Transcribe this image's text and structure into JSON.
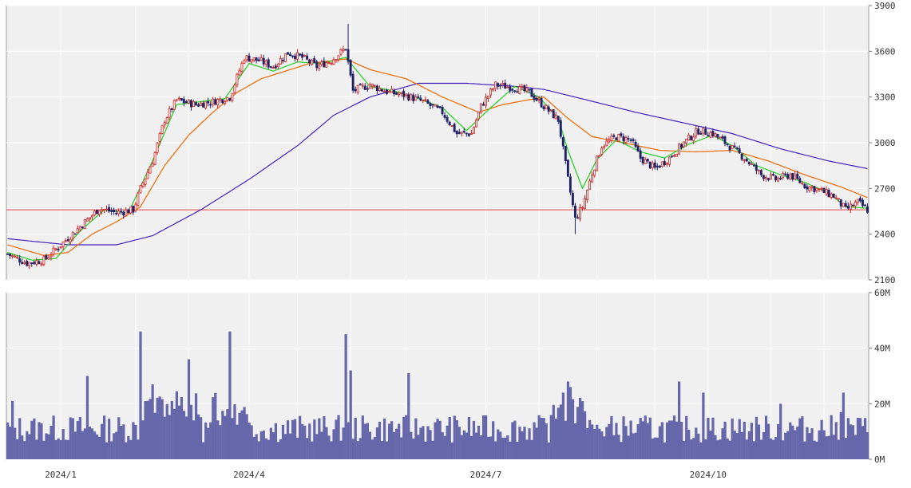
{
  "chart_data": [
    {
      "type": "candlestick",
      "title": "",
      "ylim": [
        2100,
        3900
      ],
      "y_ticks": [
        "3900",
        "3600",
        "3300",
        "3000",
        "2700",
        "2400",
        "2100"
      ],
      "x_ticks": [
        "2024/1",
        "2024/4",
        "2024/7",
        "2024/10"
      ],
      "reference_line": 2560,
      "moving_averages": [
        {
          "period": "short",
          "color": "#22cc22"
        },
        {
          "period": "medium",
          "color": "#ee6600"
        },
        {
          "period": "long",
          "color": "#4422bb"
        }
      ],
      "colors": {
        "up": "#cc2222",
        "down": "#222266",
        "panel_bg": "#f0f0f0",
        "grid": "#ffffff",
        "ref_line": "#ee4444"
      },
      "ohlc_summary": {
        "anchors": [
          [
            0,
            2270
          ],
          [
            8,
            2210
          ],
          [
            15,
            2230
          ],
          [
            22,
            2330
          ],
          [
            30,
            2450
          ],
          [
            38,
            2570
          ],
          [
            45,
            2540
          ],
          [
            52,
            2560
          ],
          [
            55,
            2700
          ],
          [
            60,
            2880
          ],
          [
            65,
            3150
          ],
          [
            70,
            3280
          ],
          [
            78,
            3250
          ],
          [
            85,
            3270
          ],
          [
            92,
            3300
          ],
          [
            98,
            3560
          ],
          [
            104,
            3540
          ],
          [
            110,
            3500
          ],
          [
            116,
            3590
          ],
          [
            122,
            3560
          ],
          [
            128,
            3500
          ],
          [
            134,
            3540
          ],
          [
            140,
            3620
          ],
          [
            143,
            3340
          ],
          [
            150,
            3380
          ],
          [
            158,
            3330
          ],
          [
            165,
            3310
          ],
          [
            172,
            3270
          ],
          [
            180,
            3200
          ],
          [
            186,
            3060
          ],
          [
            192,
            3060
          ],
          [
            196,
            3240
          ],
          [
            202,
            3380
          ],
          [
            210,
            3360
          ],
          [
            216,
            3330
          ],
          [
            222,
            3240
          ],
          [
            228,
            3150
          ],
          [
            232,
            2760
          ],
          [
            235,
            2500
          ],
          [
            238,
            2580
          ],
          [
            242,
            2800
          ],
          [
            246,
            2980
          ],
          [
            252,
            3040
          ],
          [
            258,
            3020
          ],
          [
            262,
            2900
          ],
          [
            268,
            2830
          ],
          [
            274,
            2900
          ],
          [
            280,
            3000
          ],
          [
            286,
            3080
          ],
          [
            292,
            3060
          ],
          [
            298,
            2990
          ],
          [
            305,
            2900
          ],
          [
            312,
            2790
          ],
          [
            318,
            2760
          ],
          [
            324,
            2790
          ],
          [
            330,
            2720
          ],
          [
            336,
            2690
          ],
          [
            342,
            2650
          ],
          [
            347,
            2560
          ],
          [
            352,
            2610
          ],
          [
            356,
            2560
          ]
        ],
        "count": 357
      },
      "ma_summary": {
        "short_anchors": [
          [
            0,
            2280
          ],
          [
            10,
            2230
          ],
          [
            20,
            2240
          ],
          [
            30,
            2420
          ],
          [
            40,
            2560
          ],
          [
            50,
            2540
          ],
          [
            60,
            2880
          ],
          [
            70,
            3250
          ],
          [
            80,
            3270
          ],
          [
            90,
            3290
          ],
          [
            100,
            3520
          ],
          [
            110,
            3470
          ],
          [
            120,
            3530
          ],
          [
            130,
            3520
          ],
          [
            140,
            3560
          ],
          [
            150,
            3370
          ],
          [
            160,
            3340
          ],
          [
            170,
            3290
          ],
          [
            180,
            3230
          ],
          [
            190,
            3080
          ],
          [
            200,
            3230
          ],
          [
            210,
            3370
          ],
          [
            220,
            3300
          ],
          [
            228,
            3160
          ],
          [
            232,
            2950
          ],
          [
            238,
            2700
          ],
          [
            244,
            2890
          ],
          [
            252,
            3020
          ],
          [
            262,
            2940
          ],
          [
            272,
            2900
          ],
          [
            282,
            2990
          ],
          [
            292,
            3050
          ],
          [
            300,
            2980
          ],
          [
            310,
            2850
          ],
          [
            320,
            2790
          ],
          [
            330,
            2740
          ],
          [
            340,
            2670
          ],
          [
            347,
            2580
          ],
          [
            356,
            2570
          ]
        ],
        "medium_anchors": [
          [
            0,
            2330
          ],
          [
            15,
            2260
          ],
          [
            25,
            2280
          ],
          [
            35,
            2400
          ],
          [
            45,
            2480
          ],
          [
            55,
            2580
          ],
          [
            65,
            2850
          ],
          [
            75,
            3050
          ],
          [
            85,
            3200
          ],
          [
            95,
            3330
          ],
          [
            105,
            3420
          ],
          [
            115,
            3470
          ],
          [
            125,
            3520
          ],
          [
            140,
            3550
          ],
          [
            150,
            3480
          ],
          [
            165,
            3420
          ],
          [
            180,
            3300
          ],
          [
            195,
            3200
          ],
          [
            205,
            3250
          ],
          [
            222,
            3300
          ],
          [
            232,
            3160
          ],
          [
            242,
            3040
          ],
          [
            255,
            3000
          ],
          [
            270,
            2950
          ],
          [
            285,
            2940
          ],
          [
            300,
            2950
          ],
          [
            315,
            2880
          ],
          [
            330,
            2790
          ],
          [
            345,
            2710
          ],
          [
            356,
            2640
          ]
        ],
        "long_anchors": [
          [
            0,
            2370
          ],
          [
            25,
            2330
          ],
          [
            45,
            2330
          ],
          [
            60,
            2390
          ],
          [
            80,
            2560
          ],
          [
            100,
            2760
          ],
          [
            120,
            2980
          ],
          [
            135,
            3180
          ],
          [
            150,
            3300
          ],
          [
            170,
            3390
          ],
          [
            190,
            3390
          ],
          [
            210,
            3370
          ],
          [
            222,
            3350
          ],
          [
            240,
            3280
          ],
          [
            260,
            3200
          ],
          [
            280,
            3130
          ],
          [
            300,
            3060
          ],
          [
            320,
            2960
          ],
          [
            340,
            2880
          ],
          [
            356,
            2830
          ]
        ]
      }
    },
    {
      "type": "bar",
      "title": "",
      "ylim": [
        0,
        60
      ],
      "y_ticks": [
        "60M",
        "40M",
        "20M",
        "0M"
      ],
      "x_ticks": [
        "2024/1",
        "2024/4",
        "2024/7",
        "2024/10"
      ],
      "unit": "M",
      "color": "#6666aa",
      "volume_peaks_M": [
        [
          2,
          21
        ],
        [
          33,
          30
        ],
        [
          55,
          46
        ],
        [
          60,
          27
        ],
        [
          75,
          36
        ],
        [
          92,
          46
        ],
        [
          140,
          45
        ],
        [
          142,
          32
        ],
        [
          166,
          31
        ],
        [
          230,
          24
        ],
        [
          232,
          28
        ],
        [
          233,
          26
        ],
        [
          278,
          28
        ],
        [
          288,
          24
        ],
        [
          320,
          20
        ],
        [
          346,
          24
        ],
        [
          345,
          17
        ]
      ],
      "volume_base_M": 11,
      "count": 357
    }
  ]
}
